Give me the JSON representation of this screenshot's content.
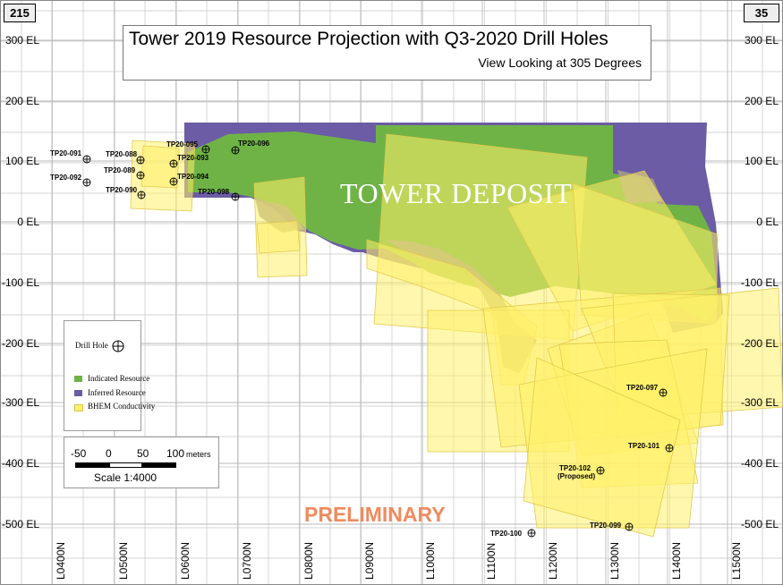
{
  "corners": {
    "left": "215",
    "right": "35"
  },
  "title": {
    "main": "Tower 2019 Resource Projection with Q3-2020 Drill Holes",
    "sub": "View Looking at 305 Degrees"
  },
  "deposit_label": "TOWER DEPOSIT",
  "preliminary_label": "PRELIMINARY",
  "elevation_labels": [
    "300 EL",
    "200 EL",
    "100 EL",
    "0 EL",
    "-100 EL",
    "-200 EL",
    "-300 EL",
    "-400 EL",
    "-500 EL"
  ],
  "section_labels": [
    "L0400N",
    "L0500N",
    "L0600N",
    "L0700N",
    "L0800N",
    "L0900N",
    "L1000N",
    "L1100N",
    "L1200N",
    "L1300N",
    "L1400N",
    "L1500N"
  ],
  "colors": {
    "indicated": "#6fb347",
    "inferred": "#6b5ca5",
    "conductivity": "#fff06a",
    "conductivity_stroke": "#e2c94a",
    "grid": "#c6c6c6",
    "overlap": "#a29a8c"
  },
  "drill_holes": [
    {
      "id": "TP20-091",
      "label": "TP20-091"
    },
    {
      "id": "TP20-092",
      "label": "TP20-092"
    },
    {
      "id": "TP20-088",
      "label": "TP20-088"
    },
    {
      "id": "TP20-089",
      "label": "TP20-089"
    },
    {
      "id": "TP20-090",
      "label": "TP20-090"
    },
    {
      "id": "TP20-095",
      "label": "TP20-095"
    },
    {
      "id": "TP20-093",
      "label": "TP20-093"
    },
    {
      "id": "TP20-094",
      "label": "TP20-094"
    },
    {
      "id": "TP20-096",
      "label": "TP20-096"
    },
    {
      "id": "TP20-098",
      "label": "TP20-098"
    },
    {
      "id": "TP20-097",
      "label": "TP20-097"
    },
    {
      "id": "TP20-101",
      "label": "TP20-101"
    },
    {
      "id": "TP20-102",
      "label": "TP20-102",
      "note": "(Proposed)"
    },
    {
      "id": "TP20-099",
      "label": "TP20-099"
    },
    {
      "id": "TP20-100",
      "label": "TP20-100"
    }
  ],
  "legend": {
    "drill_hole": "Drill Hole",
    "indicated": "Indicated Resource",
    "inferred": "Inferred Resource",
    "conductivity": "BHEM Conductivity"
  },
  "scale": {
    "ticks": [
      "-50",
      "0",
      "50",
      "100"
    ],
    "units": "meters",
    "label": "Scale 1:4000"
  }
}
